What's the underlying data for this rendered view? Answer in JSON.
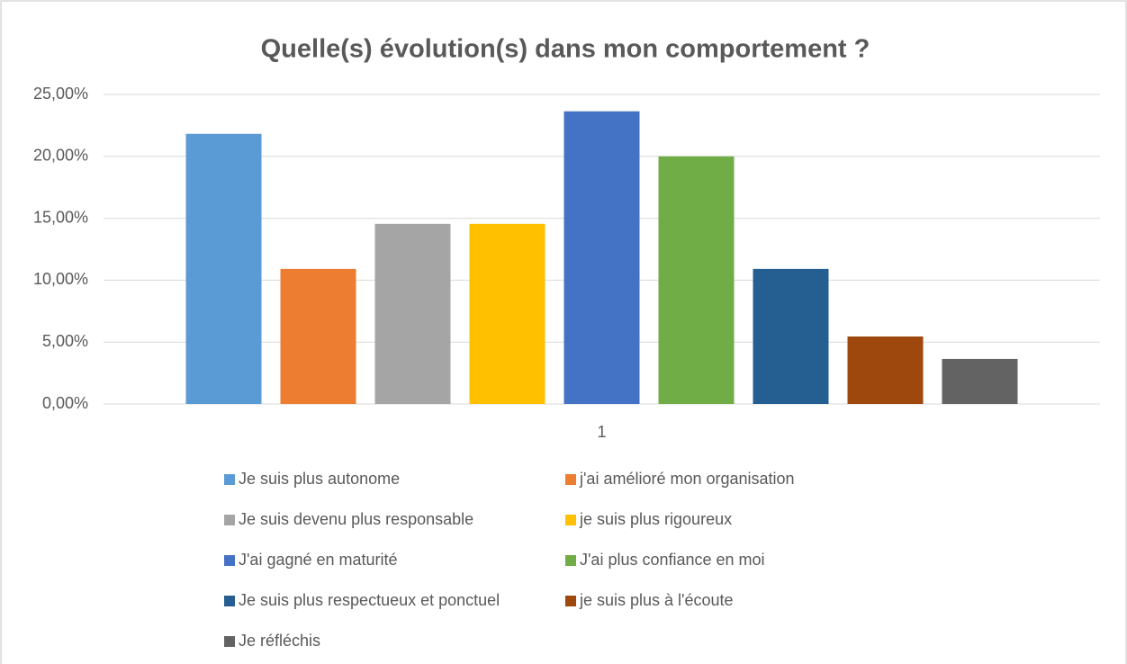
{
  "chart_data": {
    "type": "bar",
    "title": "Quelle(s) évolution(s) dans mon comportement ?",
    "categories": [
      "1"
    ],
    "series": [
      {
        "name": "Je suis plus autonome",
        "color": "#5b9bd5",
        "values": [
          21.82
        ]
      },
      {
        "name": "j'ai amélioré mon organisation",
        "color": "#ed7d31",
        "values": [
          10.91
        ]
      },
      {
        "name": "Je suis devenu plus responsable",
        "color": "#a5a5a5",
        "values": [
          14.55
        ]
      },
      {
        "name": "je suis plus rigoureux",
        "color": "#ffc000",
        "values": [
          14.55
        ]
      },
      {
        "name": "J'ai gagné en maturité",
        "color": "#4472c4",
        "values": [
          23.64
        ]
      },
      {
        "name": "J'ai plus confiance en moi",
        "color": "#70ad47",
        "values": [
          20.0
        ]
      },
      {
        "name": "Je suis plus respectueux et ponctuel",
        "color": "#255e91",
        "values": [
          10.91
        ]
      },
      {
        "name": "je suis plus à l'écoute",
        "color": "#9e480e",
        "values": [
          5.45
        ]
      },
      {
        "name": "Je réfléchis",
        "color": "#636363",
        "values": [
          3.64
        ]
      }
    ],
    "ylim": [
      0,
      25
    ],
    "yticks": [
      {
        "value": 0,
        "label": "0,00%"
      },
      {
        "value": 5,
        "label": "5,00%"
      },
      {
        "value": 10,
        "label": "10,00%"
      },
      {
        "value": 15,
        "label": "15,00%"
      },
      {
        "value": 20,
        "label": "20,00%"
      },
      {
        "value": 25,
        "label": "25,00%"
      }
    ],
    "grid": true,
    "legend": "bottom"
  }
}
